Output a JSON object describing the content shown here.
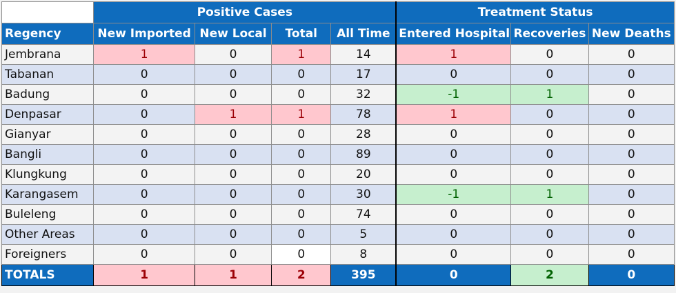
{
  "headers": {
    "group_positive": "Positive Cases",
    "group_treatment": "Treatment Status",
    "regency": "Regency",
    "new_imported": "New Imported",
    "new_local": "New Local",
    "total": "Total",
    "all_time": "All Time",
    "entered_hospital": "Entered Hospital",
    "recoveries": "Recoveries",
    "new_deaths": "New Deaths"
  },
  "rows": [
    {
      "regency": "Jembrana",
      "new_imported": "1",
      "new_local": "0",
      "total": "1",
      "all_time": "14",
      "entered_hospital": "1",
      "recoveries": "0",
      "new_deaths": "0"
    },
    {
      "regency": "Tabanan",
      "new_imported": "0",
      "new_local": "0",
      "total": "0",
      "all_time": "17",
      "entered_hospital": "0",
      "recoveries": "0",
      "new_deaths": "0"
    },
    {
      "regency": "Badung",
      "new_imported": "0",
      "new_local": "0",
      "total": "0",
      "all_time": "32",
      "entered_hospital": "-1",
      "recoveries": "1",
      "new_deaths": "0"
    },
    {
      "regency": "Denpasar",
      "new_imported": "0",
      "new_local": "1",
      "total": "1",
      "all_time": "78",
      "entered_hospital": "1",
      "recoveries": "0",
      "new_deaths": "0"
    },
    {
      "regency": "Gianyar",
      "new_imported": "0",
      "new_local": "0",
      "total": "0",
      "all_time": "28",
      "entered_hospital": "0",
      "recoveries": "0",
      "new_deaths": "0"
    },
    {
      "regency": "Bangli",
      "new_imported": "0",
      "new_local": "0",
      "total": "0",
      "all_time": "89",
      "entered_hospital": "0",
      "recoveries": "0",
      "new_deaths": "0"
    },
    {
      "regency": "Klungkung",
      "new_imported": "0",
      "new_local": "0",
      "total": "0",
      "all_time": "20",
      "entered_hospital": "0",
      "recoveries": "0",
      "new_deaths": "0"
    },
    {
      "regency": "Karangasem",
      "new_imported": "0",
      "new_local": "0",
      "total": "0",
      "all_time": "30",
      "entered_hospital": "-1",
      "recoveries": "1",
      "new_deaths": "0"
    },
    {
      "regency": "Buleleng",
      "new_imported": "0",
      "new_local": "0",
      "total": "0",
      "all_time": "74",
      "entered_hospital": "0",
      "recoveries": "0",
      "new_deaths": "0"
    },
    {
      "regency": "Other Areas",
      "new_imported": "0",
      "new_local": "0",
      "total": "0",
      "all_time": "5",
      "entered_hospital": "0",
      "recoveries": "0",
      "new_deaths": "0"
    },
    {
      "regency": "Foreigners",
      "new_imported": "0",
      "new_local": "0",
      "total": "0",
      "all_time": "8",
      "entered_hospital": "0",
      "recoveries": "0",
      "new_deaths": "0"
    }
  ],
  "totals": {
    "label": "TOTALS",
    "new_imported": "1",
    "new_local": "1",
    "total": "2",
    "all_time": "395",
    "entered_hospital": "0",
    "recoveries": "2",
    "new_deaths": "0"
  },
  "colors": {
    "header_blue": "#0f6cbd",
    "increase_pink": "#ffc7ce",
    "increase_text": "#9c0006",
    "decrease_green": "#c6efce",
    "decrease_text": "#006100",
    "row_band_blue": "#d9e1f2",
    "row_band_grey": "#f3f3f3"
  }
}
